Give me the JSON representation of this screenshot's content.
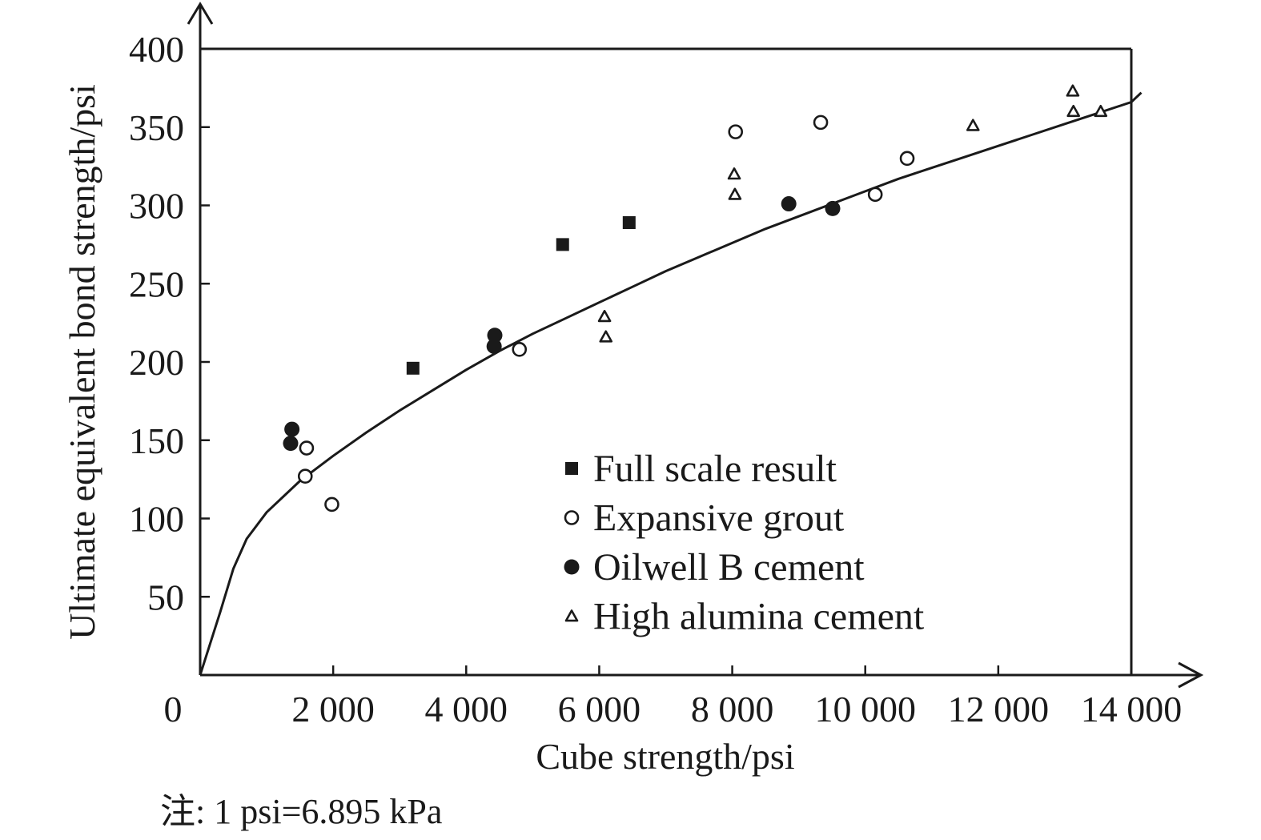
{
  "chart_data": {
    "type": "scatter",
    "xlabel": "Cube strength/psi",
    "ylabel": "Ultimate equivalent bond strength/psi",
    "xlim": [
      0,
      14000
    ],
    "ylim": [
      0,
      400
    ],
    "x_origin_label": "0",
    "x_ticks": [
      {
        "value": 2000,
        "label": "2 000"
      },
      {
        "value": 4000,
        "label": "4 000"
      },
      {
        "value": 6000,
        "label": "6 000"
      },
      {
        "value": 8000,
        "label": "8 000"
      },
      {
        "value": 10000,
        "label": "10 000"
      },
      {
        "value": 12000,
        "label": "12 000"
      },
      {
        "value": 14000,
        "label": "14 000"
      }
    ],
    "y_ticks": [
      {
        "value": 50,
        "label": "50"
      },
      {
        "value": 100,
        "label": "100"
      },
      {
        "value": 150,
        "label": "150"
      },
      {
        "value": 200,
        "label": "200"
      },
      {
        "value": 250,
        "label": "250"
      },
      {
        "value": 300,
        "label": "300"
      },
      {
        "value": 350,
        "label": "350"
      },
      {
        "value": 400,
        "label": "400"
      }
    ],
    "grid": false,
    "legend_position": "lower-right",
    "series": [
      {
        "name": "Full scale result",
        "marker": "filled-square",
        "points": [
          {
            "x": 3200,
            "y": 196
          },
          {
            "x": 5450,
            "y": 275
          },
          {
            "x": 6450,
            "y": 289
          }
        ]
      },
      {
        "name": "Expansive grout",
        "marker": "open-circle",
        "points": [
          {
            "x": 1600,
            "y": 145
          },
          {
            "x": 1580,
            "y": 127
          },
          {
            "x": 1980,
            "y": 109
          },
          {
            "x": 4800,
            "y": 208
          },
          {
            "x": 8050,
            "y": 347
          },
          {
            "x": 9330,
            "y": 353
          },
          {
            "x": 10150,
            "y": 307
          },
          {
            "x": 10630,
            "y": 330
          }
        ]
      },
      {
        "name": "Oilwell B cement",
        "marker": "filled-circle",
        "points": [
          {
            "x": 1380,
            "y": 157
          },
          {
            "x": 1360,
            "y": 148
          },
          {
            "x": 4430,
            "y": 217
          },
          {
            "x": 4420,
            "y": 210
          },
          {
            "x": 8850,
            "y": 301
          },
          {
            "x": 9510,
            "y": 298
          }
        ]
      },
      {
        "name": "High alumina cement",
        "marker": "open-triangle",
        "points": [
          {
            "x": 6080,
            "y": 229
          },
          {
            "x": 6100,
            "y": 216
          },
          {
            "x": 8030,
            "y": 320
          },
          {
            "x": 8040,
            "y": 307
          },
          {
            "x": 11620,
            "y": 351
          },
          {
            "x": 13120,
            "y": 373
          },
          {
            "x": 13130,
            "y": 360
          },
          {
            "x": 13540,
            "y": 360
          }
        ]
      }
    ],
    "fit_curve": [
      [
        0,
        0
      ],
      [
        300,
        40
      ],
      [
        500,
        68
      ],
      [
        700,
        87
      ],
      [
        1000,
        104
      ],
      [
        1500,
        124
      ],
      [
        2000,
        140
      ],
      [
        2500,
        155
      ],
      [
        3000,
        169
      ],
      [
        3500,
        182
      ],
      [
        4000,
        195
      ],
      [
        4500,
        207
      ],
      [
        5000,
        218
      ],
      [
        5500,
        228
      ],
      [
        6000,
        238
      ],
      [
        6500,
        248
      ],
      [
        7000,
        258
      ],
      [
        7500,
        267
      ],
      [
        8000,
        276
      ],
      [
        8500,
        285
      ],
      [
        9000,
        293
      ],
      [
        9500,
        301
      ],
      [
        10000,
        309
      ],
      [
        10500,
        317
      ],
      [
        11000,
        324
      ],
      [
        11500,
        331
      ],
      [
        12000,
        338
      ],
      [
        12500,
        345
      ],
      [
        13000,
        352
      ],
      [
        13500,
        359
      ],
      [
        14000,
        366
      ],
      [
        14150,
        372
      ]
    ]
  },
  "note": "注: 1 psi=6.895 kPa"
}
